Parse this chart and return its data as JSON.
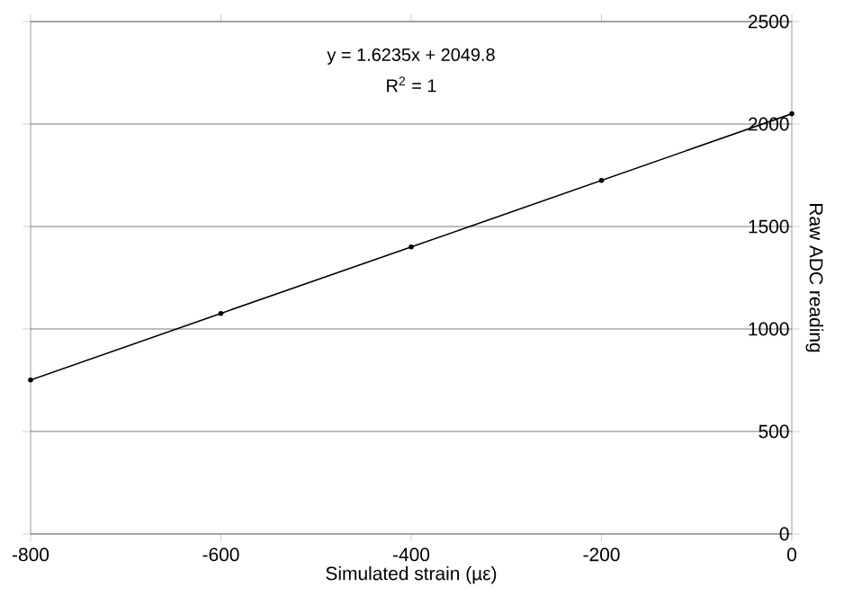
{
  "chart_data": {
    "type": "line",
    "xlabel": "Simulated strain (µε)",
    "ylabel": "Raw ADC reading",
    "x": [
      -800,
      -600,
      -400,
      -200,
      0
    ],
    "series": [
      {
        "color": "#000000",
        "values": [
          751,
          1076,
          1400,
          1725,
          2050
        ]
      }
    ],
    "xlim": [
      -800,
      0
    ],
    "xticks": [
      -800,
      -600,
      -400,
      -200,
      0
    ],
    "ylim": [
      0,
      2500
    ],
    "yticks": [
      0,
      500,
      1000,
      1500,
      2000,
      2500
    ],
    "grid": "y",
    "marker": "circle",
    "line_style": "solid",
    "annotations": [
      "y = 1.6235x + 2049.8",
      "R$^{2}$ = 1"
    ]
  }
}
